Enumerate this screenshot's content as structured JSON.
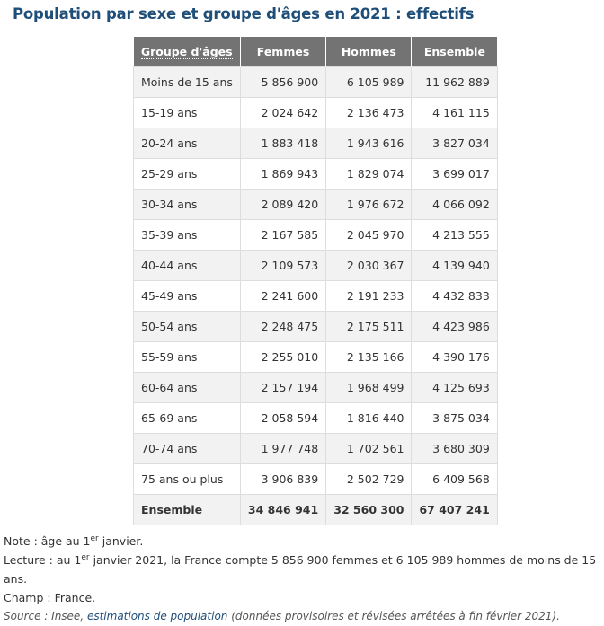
{
  "title": "Population par sexe et groupe d'âges en 2021 : effectifs",
  "table": {
    "headers": [
      "Groupe d'âges",
      "Femmes",
      "Hommes",
      "Ensemble"
    ],
    "rows": [
      [
        "Moins de 15 ans",
        "5 856 900",
        "6 105 989",
        "11 962 889"
      ],
      [
        "15-19 ans",
        "2 024 642",
        "2 136 473",
        "4 161 115"
      ],
      [
        "20-24 ans",
        "1 883 418",
        "1 943 616",
        "3 827 034"
      ],
      [
        "25-29 ans",
        "1 869 943",
        "1 829 074",
        "3 699 017"
      ],
      [
        "30-34 ans",
        "2 089 420",
        "1 976 672",
        "4 066 092"
      ],
      [
        "35-39 ans",
        "2 167 585",
        "2 045 970",
        "4 213 555"
      ],
      [
        "40-44 ans",
        "2 109 573",
        "2 030 367",
        "4 139 940"
      ],
      [
        "45-49 ans",
        "2 241 600",
        "2 191 233",
        "4 432 833"
      ],
      [
        "50-54 ans",
        "2 248 475",
        "2 175 511",
        "4 423 986"
      ],
      [
        "55-59 ans",
        "2 255 010",
        "2 135 166",
        "4 390 176"
      ],
      [
        "60-64 ans",
        "2 157 194",
        "1 968 499",
        "4 125 693"
      ],
      [
        "65-69 ans",
        "2 058 594",
        "1 816 440",
        "3 875 034"
      ],
      [
        "70-74 ans",
        "1 977 748",
        "1 702 561",
        "3 680 309"
      ],
      [
        "75 ans ou plus",
        "3 906 839",
        "2 502 729",
        "6 409 568"
      ]
    ],
    "total": [
      "Ensemble",
      "34 846 941",
      "32 560 300",
      "67 407 241"
    ]
  },
  "notes": {
    "note_prefix": "Note : âge au 1",
    "note_sup": "er",
    "note_suffix": " janvier.",
    "lecture_prefix": "Lecture : au 1",
    "lecture_sup": "er",
    "lecture_suffix": " janvier 2021, la France compte 5 856 900 femmes et 6 105 989 hommes de moins de 15 ans.",
    "champ": "Champ : France.",
    "source_prefix": "Source : Insee, ",
    "source_link": "estimations de population",
    "source_suffix": " (données provisoires et révisées arrêtées à fin février 2021)."
  }
}
